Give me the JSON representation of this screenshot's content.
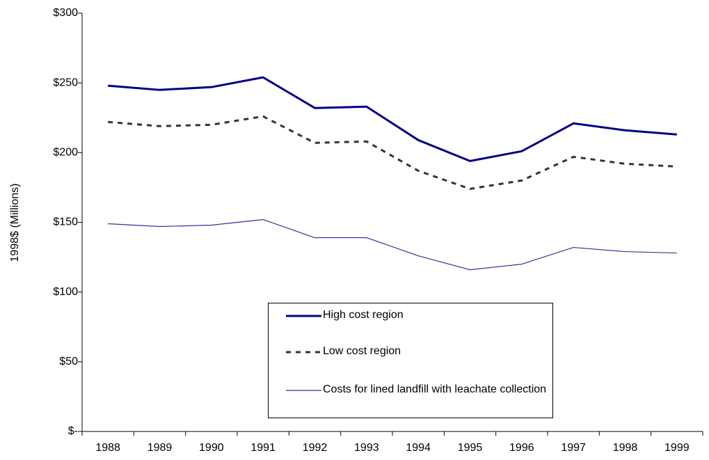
{
  "chart_data": {
    "type": "line",
    "y_label": "1998$ (Millions)",
    "categories": [
      "1988",
      "1989",
      "1990",
      "1991",
      "1992",
      "1993",
      "1994",
      "1995",
      "1996",
      "1997",
      "1998",
      "1999"
    ],
    "series": [
      {
        "name": "High cost region",
        "color": "#000080",
        "line_style": "solid",
        "line_width": 3,
        "values": [
          248,
          245,
          247,
          254,
          232,
          233,
          209,
          194,
          201,
          221,
          216,
          213
        ]
      },
      {
        "name": "Low cost region",
        "color": "#333333",
        "line_style": "dashed",
        "line_width": 3,
        "values": [
          222,
          219,
          220,
          226,
          207,
          208,
          187,
          174,
          180,
          197,
          192,
          190
        ]
      },
      {
        "name": "Costs for lined landfill with leachate collection",
        "color": "#3333a0",
        "line_style": "solid",
        "line_width": 1.2,
        "values": [
          149,
          147,
          148,
          152,
          139,
          139,
          126,
          116,
          120,
          132,
          129,
          128
        ]
      }
    ],
    "ylim": [
      0,
      300
    ],
    "yticks": [
      {
        "value": 0,
        "label": "$-"
      },
      {
        "value": 50,
        "label": "$50"
      },
      {
        "value": 100,
        "label": "$100"
      },
      {
        "value": 150,
        "label": "$150"
      },
      {
        "value": 200,
        "label": "$200"
      },
      {
        "value": 250,
        "label": "$250"
      },
      {
        "value": 300,
        "label": "$300"
      }
    ],
    "grid": false
  }
}
